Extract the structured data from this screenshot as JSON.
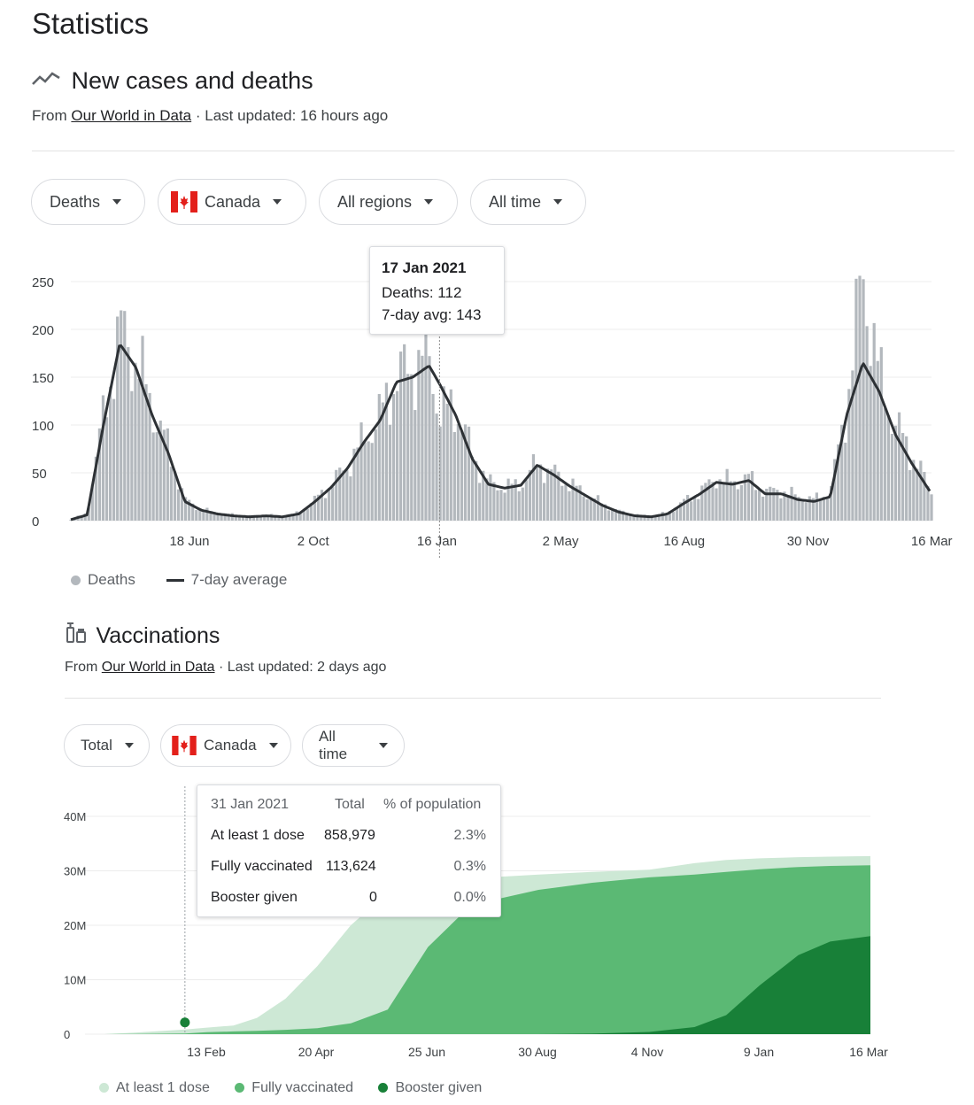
{
  "page": {
    "title": "Statistics"
  },
  "cases": {
    "title": "New cases and deaths",
    "source_prefix": "From",
    "source_link": "Our World in Data",
    "updated": "· Last updated: 16 hours ago",
    "chips": {
      "metric": "Deaths",
      "country": "Canada",
      "region": "All regions",
      "time": "All time"
    },
    "tooltip": {
      "date": "17 Jan 2021",
      "deaths": "Deaths: 112",
      "avg": "7-day avg: 143"
    },
    "legend": {
      "bars": "Deaths",
      "line": "7-day average"
    }
  },
  "vacc": {
    "title": "Vaccinations",
    "source_prefix": "From",
    "source_link": "Our World in Data",
    "updated": "· Last updated: 2 days ago",
    "chips": {
      "metric": "Total",
      "country": "Canada",
      "time": "All time"
    },
    "tooltip": {
      "date": "31 Jan 2021",
      "col_total": "Total",
      "col_pct": "% of population",
      "rows": [
        {
          "label": "At least 1 dose",
          "total": "858,979",
          "pct": "2.3%"
        },
        {
          "label": "Fully vaccinated",
          "total": "113,624",
          "pct": "0.3%"
        },
        {
          "label": "Booster given",
          "total": "0",
          "pct": "0.0%"
        }
      ]
    },
    "legend": {
      "s1": "At least 1 dose",
      "s2": "Fully vaccinated",
      "s3": "Booster given"
    }
  },
  "colors": {
    "bar": "#b3b8bd",
    "line": "#2d3135",
    "dose1": "#cde8d5",
    "fully": "#5bb974",
    "booster": "#188038",
    "dose1_legend": "#cde8d5"
  },
  "chart_data": [
    {
      "type": "bar",
      "title": "",
      "xlabel": "",
      "ylabel": "",
      "ylim": [
        0,
        250
      ],
      "yticks": [
        "0",
        "50",
        "100",
        "150",
        "200",
        "250"
      ],
      "xticks": [
        "18 Jun",
        "2 Oct",
        "16 Jan",
        "2 May",
        "16 Aug",
        "30 Nov",
        "16 Mar"
      ],
      "series": [
        {
          "name": "Deaths",
          "kind": "bar"
        },
        {
          "name": "7-day average",
          "kind": "line"
        }
      ],
      "x": [
        "2020-03-06",
        "2020-03-20",
        "2020-04-03",
        "2020-04-17",
        "2020-05-01",
        "2020-05-15",
        "2020-05-29",
        "2020-06-12",
        "2020-06-26",
        "2020-07-10",
        "2020-07-24",
        "2020-08-07",
        "2020-08-21",
        "2020-09-04",
        "2020-09-18",
        "2020-10-02",
        "2020-10-16",
        "2020-10-30",
        "2020-11-13",
        "2020-11-27",
        "2020-12-11",
        "2020-12-25",
        "2021-01-08",
        "2021-01-17",
        "2021-01-31",
        "2021-02-14",
        "2021-02-28",
        "2021-03-14",
        "2021-03-28",
        "2021-04-11",
        "2021-04-25",
        "2021-05-09",
        "2021-05-23",
        "2021-06-06",
        "2021-06-20",
        "2021-07-04",
        "2021-07-18",
        "2021-08-01",
        "2021-08-15",
        "2021-08-29",
        "2021-09-12",
        "2021-09-26",
        "2021-10-10",
        "2021-10-24",
        "2021-11-07",
        "2021-11-21",
        "2021-12-05",
        "2021-12-19",
        "2022-01-02",
        "2022-01-16",
        "2022-01-30",
        "2022-02-13",
        "2022-02-27",
        "2022-03-16"
      ],
      "deaths": [
        1,
        8,
        110,
        200,
        170,
        120,
        75,
        22,
        12,
        8,
        6,
        5,
        6,
        5,
        8,
        22,
        38,
        58,
        85,
        110,
        150,
        160,
        175,
        112,
        120,
        70,
        40,
        35,
        38,
        60,
        50,
        38,
        28,
        18,
        10,
        6,
        5,
        8,
        20,
        30,
        45,
        40,
        45,
        30,
        32,
        25,
        22,
        30,
        120,
        260,
        150,
        100,
        70,
        30
      ],
      "avg7": [
        1,
        6,
        100,
        185,
        160,
        110,
        70,
        20,
        11,
        7,
        5,
        4,
        5,
        4,
        7,
        20,
        35,
        55,
        82,
        105,
        145,
        150,
        162,
        143,
        110,
        65,
        38,
        34,
        37,
        58,
        48,
        36,
        26,
        16,
        9,
        5,
        4,
        7,
        18,
        28,
        40,
        38,
        42,
        28,
        28,
        22,
        20,
        25,
        110,
        165,
        135,
        90,
        60,
        28
      ]
    },
    {
      "type": "area",
      "title": "",
      "xlabel": "",
      "ylabel": "",
      "ylim": [
        0,
        40000000
      ],
      "yticks": [
        "0",
        "10M",
        "20M",
        "30M",
        "40M"
      ],
      "xticks": [
        "13 Feb",
        "20 Apr",
        "25 Jun",
        "30 Aug",
        "4 Nov",
        "9 Jan",
        "16 Mar"
      ],
      "x": [
        "2020-12-14",
        "2021-01-01",
        "2021-01-31",
        "2021-02-13",
        "2021-03-01",
        "2021-03-15",
        "2021-04-01",
        "2021-04-20",
        "2021-05-10",
        "2021-06-01",
        "2021-06-25",
        "2021-07-15",
        "2021-08-01",
        "2021-08-30",
        "2021-10-01",
        "2021-11-04",
        "2021-12-01",
        "2021-12-20",
        "2022-01-09",
        "2022-02-01",
        "2022-02-20",
        "2022-03-16"
      ],
      "series": [
        {
          "name": "At least 1 dose",
          "values": [
            0,
            300000,
            858979,
            1200000,
            1600000,
            3000000,
            6500000,
            12500000,
            20000000,
            26000000,
            27500000,
            28200000,
            28800000,
            29300000,
            29800000,
            30200000,
            31400000,
            32000000,
            32300000,
            32500000,
            32600000,
            32700000
          ]
        },
        {
          "name": "Fully vaccinated",
          "values": [
            0,
            50000,
            113624,
            350000,
            500000,
            600000,
            800000,
            1100000,
            2000000,
            4500000,
            16000000,
            22000000,
            24500000,
            26500000,
            27800000,
            28800000,
            29300000,
            29800000,
            30300000,
            30700000,
            30900000,
            31000000
          ]
        },
        {
          "name": "Booster given",
          "values": [
            0,
            0,
            0,
            0,
            0,
            0,
            0,
            0,
            0,
            0,
            0,
            0,
            0,
            0,
            100000,
            400000,
            1300000,
            3500000,
            9000000,
            14500000,
            17000000,
            18000000
          ]
        }
      ]
    }
  ]
}
